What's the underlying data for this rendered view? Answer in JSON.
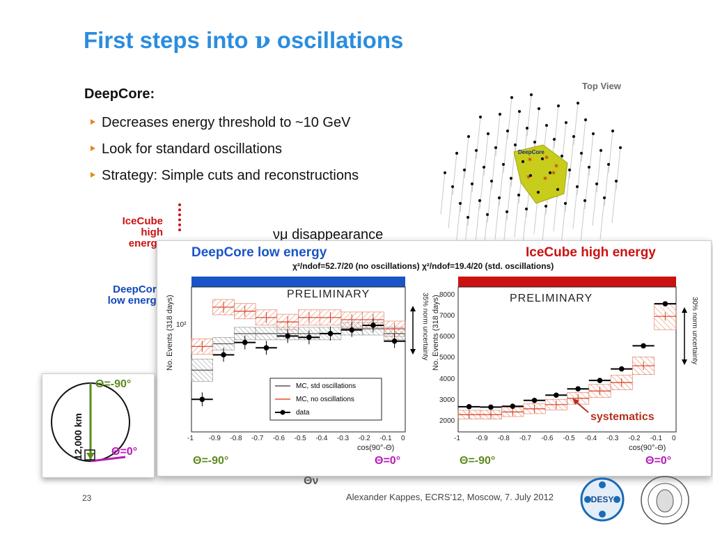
{
  "slide": {
    "title_prefix": "First steps into ",
    "title_nu": "ν",
    "title_suffix": " oscillations",
    "heading": "DeepCore:",
    "bullets": [
      "Decreases energy threshold to ~10 GeV",
      "Look for standard oscillations",
      "Strategy: Simple cuts and reconstructions"
    ],
    "side_icecube": [
      "IceCube",
      "high energy"
    ],
    "side_deepcore": [
      "DeepCore",
      "low energy"
    ],
    "disappearance": "νμ disappearance",
    "top_view": "Top View",
    "deepcore_tag": "DeepCore",
    "theta_v": "Θν",
    "footer": "Alexander Kappes, ECRS'12, Moscow, 7. July 2012",
    "page_number": "23",
    "desy_logo": "DESY",
    "humboldt_seal": "HUMBOLDT-UNIVERSITÄT ZU BERLIN"
  },
  "panel": {
    "deepcore_label": "DeepCore low energy",
    "icecube_label": "IceCube high energy",
    "chi2": "χ²/ndof=52.7/20 (no oscillations) χ²/ndof=19.4/20 (std. oscillations)",
    "systematics": "systematics"
  },
  "inset": {
    "theta_top": "Θ=-90°",
    "theta_bottom": "Θ=0°",
    "distance": "12,000 km"
  },
  "colors": {
    "title_blue": "#2a8ddf",
    "deepcore_blue": "#1a55c8",
    "icecube_red": "#cc1111",
    "theta_green": "#5d8a1e",
    "theta_purple": "#b51ab5",
    "deepcore_yellow": "#c8cc1a",
    "bullet_orange": "#e08a1a"
  },
  "chart_data": [
    {
      "type": "line",
      "title": "",
      "subtitle": "PRELIMINARY",
      "xlabel": "cos(90°-Θ)",
      "ylabel": "No. Events (318 days)",
      "yscale": "log",
      "x_ticks": [
        "-1",
        "-0.9",
        "-0.8",
        "-0.7",
        "-0.6",
        "-0.5",
        "-0.4",
        "-0.3",
        "-0.2",
        "-0.1",
        "0"
      ],
      "y_tick_label": "10²",
      "norm_uncertainty": "35% norm uncertainty",
      "bin_edges": [
        -1,
        -0.9,
        -0.8,
        -0.7,
        -0.6,
        -0.5,
        -0.4,
        -0.3,
        -0.2,
        -0.1,
        0
      ],
      "series": [
        {
          "name": "data",
          "values": [
            62,
            88,
            97,
            93,
            102,
            101,
            104,
            107,
            111,
            98
          ]
        },
        {
          "name": "MC, std oscillations",
          "values": [
            78,
            96,
            104,
            104,
            104,
            104,
            104,
            108,
            108,
            104
          ]
        },
        {
          "name": "MC, no oscillations",
          "values": [
            94,
            128,
            124,
            118,
            114,
            118,
            118,
            116,
            116,
            108
          ]
        }
      ],
      "theta_left": "Θ=-90°",
      "theta_right": "Θ=0°"
    },
    {
      "type": "line",
      "title": "",
      "subtitle": "PRELIMINARY",
      "xlabel": "cos(90°-Θ)",
      "ylabel": "No. Events (318 days)",
      "ylim": [
        1500,
        8400
      ],
      "y_ticks": [
        2000,
        3000,
        4000,
        5000,
        6000,
        7000,
        8000
      ],
      "x_ticks": [
        "-1",
        "-0.9",
        "-0.8",
        "-0.7",
        "-0.6",
        "-0.5",
        "-0.4",
        "-0.3",
        "-0.2",
        "-0.1",
        "0"
      ],
      "norm_uncertainty": "30% norm uncertainty",
      "bin_edges": [
        -1,
        -0.9,
        -0.8,
        -0.7,
        -0.6,
        -0.5,
        -0.4,
        -0.3,
        -0.2,
        -0.1,
        0
      ],
      "series": [
        {
          "name": "data",
          "values": [
            2700,
            2680,
            2720,
            3000,
            3250,
            3550,
            3950,
            4500,
            5600,
            7600
          ]
        },
        {
          "name": "MC, no oscillations",
          "values": [
            2320,
            2320,
            2450,
            2600,
            2800,
            3100,
            3450,
            3850,
            4650,
            7000
          ]
        }
      ],
      "theta_left": "Θ=-90°",
      "theta_right": "Θ=0°"
    }
  ]
}
